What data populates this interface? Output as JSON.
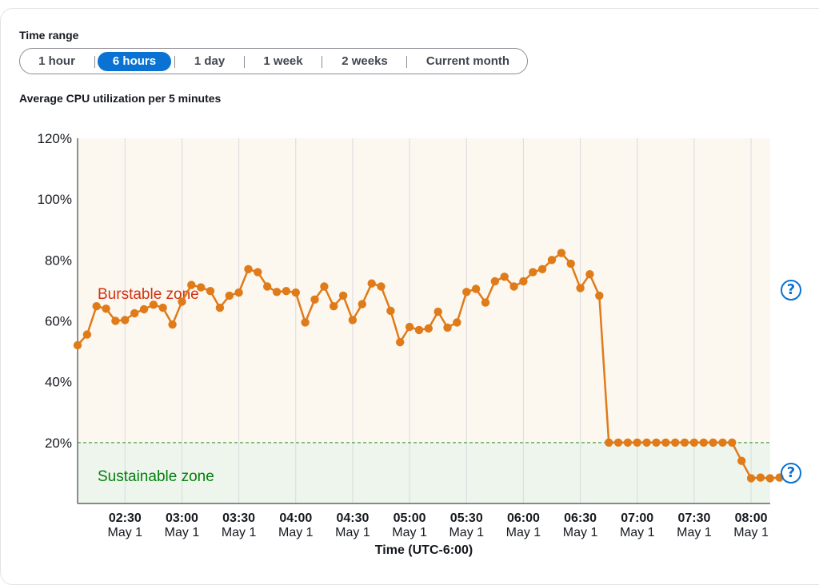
{
  "time_range": {
    "label": "Time range",
    "options": [
      "1 hour",
      "6 hours",
      "1 day",
      "1 week",
      "2 weeks",
      "Current month"
    ],
    "selected": "6 hours"
  },
  "help_icons": {
    "glyph": "?",
    "icon": "help-circle-icon"
  },
  "colors": {
    "line": "#e07b1a",
    "burstable_zone": "#fcf7ef",
    "sustainable_zone": "#edf5ec",
    "threshold": "#2e8b2e",
    "accent": "#0972d3"
  },
  "chart_data": {
    "type": "line",
    "title": "Average CPU utilization per 5 minutes",
    "xlabel": "Time (UTC-6:00)",
    "ylabel": "",
    "ylim": [
      0,
      120
    ],
    "yticks": [
      "120%",
      "100%",
      "80%",
      "60%",
      "40%",
      "20%"
    ],
    "xticks": [
      {
        "time": "02:30",
        "date": "May 1"
      },
      {
        "time": "03:00",
        "date": "May 1"
      },
      {
        "time": "03:30",
        "date": "May 1"
      },
      {
        "time": "04:00",
        "date": "May 1"
      },
      {
        "time": "04:30",
        "date": "May 1"
      },
      {
        "time": "05:00",
        "date": "May 1"
      },
      {
        "time": "05:30",
        "date": "May 1"
      },
      {
        "time": "06:00",
        "date": "May 1"
      },
      {
        "time": "06:30",
        "date": "May 1"
      },
      {
        "time": "07:00",
        "date": "May 1"
      },
      {
        "time": "07:30",
        "date": "May 1"
      },
      {
        "time": "08:00",
        "date": "May 1"
      }
    ],
    "x_start": "02:25",
    "x_step_minutes": 5,
    "series": [
      {
        "values": [
          52,
          55.5,
          64.8,
          64,
          60,
          60.3,
          62.5,
          63.8,
          65.3,
          64.3,
          58.8,
          66.3,
          71.8,
          71,
          69.8,
          64.3,
          68.3,
          69.3,
          77,
          76,
          71.3,
          69.5,
          69.8,
          69.3,
          59.5,
          67,
          71.3,
          64.8,
          68.3,
          60.3,
          65.5,
          72.3,
          71.3,
          63.3,
          53,
          58,
          57,
          57.5,
          63,
          57.8,
          59.5,
          69.5,
          70.5,
          66,
          73,
          74.5,
          71.3,
          73,
          76,
          77,
          80,
          82.3,
          78.8,
          70.8,
          75.3,
          68.3,
          20,
          20,
          20,
          20,
          20,
          20,
          20,
          20,
          20,
          20,
          20,
          20,
          20,
          20,
          14,
          8.3,
          8.5,
          8.3,
          8.5
        ]
      }
    ],
    "zones": [
      {
        "name": "Burstable zone",
        "from": 20,
        "to": 120
      },
      {
        "name": "Sustainable zone",
        "from": 0,
        "to": 20
      }
    ],
    "threshold": 20,
    "grid": true
  }
}
